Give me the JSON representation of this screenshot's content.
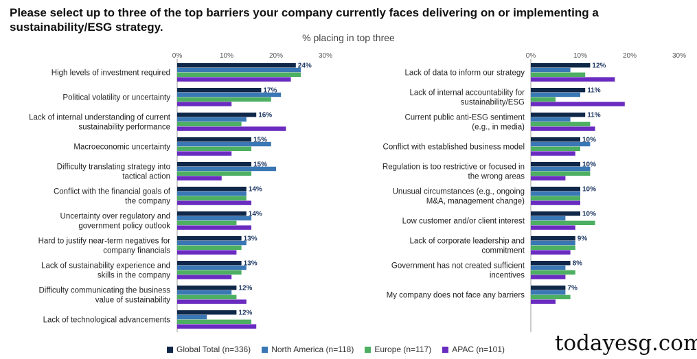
{
  "title": "Please select up to three of the top barriers your company currently faces delivering on or implementing a sustainability/ESG strategy.",
  "colors": {
    "global": "#0f2748",
    "north_america": "#3a77b5",
    "europe": "#4caf61",
    "apac": "#6a2cc0"
  },
  "watermark": "todayesg.com",
  "chart_data": [
    {
      "type": "bar",
      "orientation": "horizontal",
      "subtitle": "% placing in top three",
      "xlim": [
        0,
        30
      ],
      "ticks": [
        "0%",
        "10%",
        "20%",
        "30%"
      ],
      "categories": [
        [
          "High levels of investment required"
        ],
        [
          "Political volatility or uncertainty"
        ],
        [
          "Lack of internal understanding of current",
          "sustainability performance"
        ],
        [
          "Macroeconomic uncertainty"
        ],
        [
          "Difficulty translating strategy into",
          "tactical action"
        ],
        [
          "Conflict with the financial goals of",
          "the company"
        ],
        [
          "Uncertainty over regulatory and",
          "government policy outlook"
        ],
        [
          "Hard to justify near-term negatives for",
          "company financials"
        ],
        [
          "Lack of sustainability experience and",
          "skills in the company"
        ],
        [
          "Difficulty communicating the business",
          "value of sustainability"
        ],
        [
          "Lack of technological advancements"
        ]
      ],
      "series": [
        {
          "name": "Global Total (n=336)",
          "key": "global",
          "values": [
            24,
            17,
            16,
            15,
            15,
            14,
            14,
            13,
            13,
            12,
            12
          ],
          "labels": [
            "24%",
            "17%",
            "16%",
            "15%",
            "15%",
            "14%",
            "14%",
            "13%",
            "13%",
            "12%",
            "12%"
          ]
        },
        {
          "name": "North America (n=118)",
          "key": "north_america",
          "values": [
            25,
            21,
            14,
            19,
            20,
            14,
            15,
            14,
            14,
            11,
            6
          ]
        },
        {
          "name": "Europe (n=117)",
          "key": "europe",
          "values": [
            25,
            19,
            13,
            15,
            15,
            14,
            12,
            13,
            13,
            12,
            15
          ]
        },
        {
          "name": "APAC (n=101)",
          "key": "apac",
          "values": [
            23,
            11,
            22,
            11,
            9,
            15,
            15,
            12,
            11,
            14,
            16
          ]
        }
      ]
    },
    {
      "type": "bar",
      "orientation": "horizontal",
      "xlim": [
        0,
        30
      ],
      "ticks": [
        "0%",
        "10%",
        "20%",
        "30%"
      ],
      "categories": [
        [
          "Lack of data to inform our strategy"
        ],
        [
          "Lack of internal accountability for",
          "sustainability/ESG"
        ],
        [
          "Current public anti-ESG sentiment",
          "(e.g., in media)"
        ],
        [
          "Conflict with established business model"
        ],
        [
          "Regulation is too restrictive or focused in",
          "the wrong areas"
        ],
        [
          "Unusual circumstances (e.g., ongoing",
          "M&A, management change)"
        ],
        [
          "Low customer and/or client interest"
        ],
        [
          "Lack of corporate leadership and",
          "commitment"
        ],
        [
          "Government has not created sufficient",
          "incentives"
        ],
        [
          "My company does not face any barriers"
        ]
      ],
      "series": [
        {
          "name": "Global Total (n=336)",
          "key": "global",
          "values": [
            12,
            11,
            11,
            10,
            10,
            10,
            10,
            9,
            8,
            7
          ],
          "labels": [
            "12%",
            "11%",
            "11%",
            "10%",
            "10%",
            "10%",
            "10%",
            "9%",
            "8%",
            "7%"
          ]
        },
        {
          "name": "North America (n=118)",
          "key": "north_america",
          "values": [
            8,
            10,
            8,
            12,
            12,
            10,
            7,
            9,
            7,
            7
          ]
        },
        {
          "name": "Europe (n=117)",
          "key": "europe",
          "values": [
            11,
            5,
            12,
            10,
            12,
            10,
            13,
            9,
            9,
            8
          ]
        },
        {
          "name": "APAC (n=101)",
          "key": "apac",
          "values": [
            17,
            19,
            13,
            9,
            7,
            10,
            9,
            8,
            7,
            5
          ]
        }
      ]
    }
  ],
  "legend": [
    {
      "label": "Global Total (n=336)",
      "key": "global"
    },
    {
      "label": "North America (n=118)",
      "key": "north_america"
    },
    {
      "label": "Europe (n=117)",
      "key": "europe"
    },
    {
      "label": "APAC (n=101)",
      "key": "apac"
    }
  ]
}
